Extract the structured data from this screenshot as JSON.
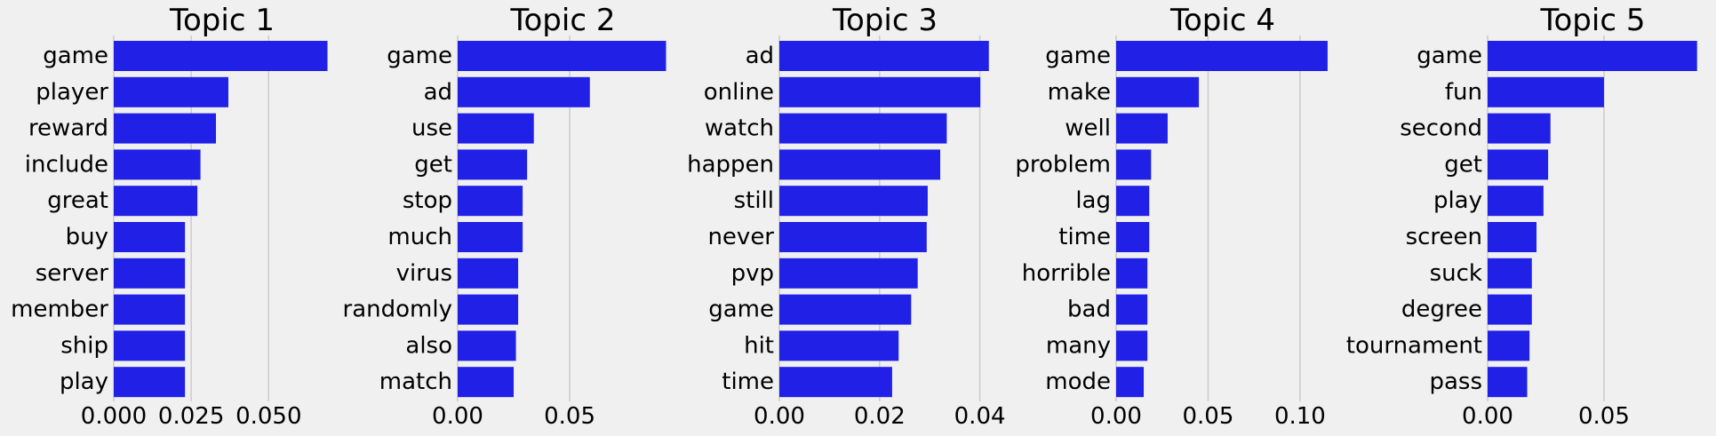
{
  "colors": {
    "background": "#f0f0f0",
    "bar": "#2020e6",
    "grid": "#cbcbcb"
  },
  "chart_data": [
    {
      "type": "bar",
      "orientation": "horizontal",
      "title": "Topic 1",
      "categories": [
        "game",
        "player",
        "reward",
        "include",
        "great",
        "buy",
        "server",
        "member",
        "ship",
        "play"
      ],
      "values": [
        0.069,
        0.037,
        0.033,
        0.028,
        0.027,
        0.023,
        0.023,
        0.023,
        0.023,
        0.023
      ],
      "xlim": [
        0,
        0.07
      ],
      "xticks": [
        0.0,
        0.025,
        0.05
      ],
      "xticklabels": [
        "0.000",
        "0.025",
        "0.050"
      ],
      "xlabel": "",
      "ylabel": "",
      "grid": "vertical"
    },
    {
      "type": "bar",
      "orientation": "horizontal",
      "title": "Topic 2",
      "categories": [
        "game",
        "ad",
        "use",
        "get",
        "stop",
        "much",
        "virus",
        "randomly",
        "also",
        "match"
      ],
      "values": [
        0.093,
        0.059,
        0.034,
        0.031,
        0.029,
        0.029,
        0.027,
        0.027,
        0.026,
        0.025
      ],
      "xlim": [
        0,
        0.094
      ],
      "xticks": [
        0.0,
        0.05
      ],
      "xticklabels": [
        "0.00",
        "0.05"
      ],
      "xlabel": "",
      "ylabel": "",
      "grid": "vertical"
    },
    {
      "type": "bar",
      "orientation": "horizontal",
      "title": "Topic 3",
      "categories": [
        "ad",
        "online",
        "watch",
        "happen",
        "still",
        "never",
        "pvp",
        "game",
        "hit",
        "time"
      ],
      "values": [
        0.0418,
        0.0401,
        0.0334,
        0.0321,
        0.0296,
        0.0294,
        0.0276,
        0.0263,
        0.0238,
        0.0225
      ],
      "xlim": [
        0,
        0.0422
      ],
      "xticks": [
        0.0,
        0.02,
        0.04
      ],
      "xticklabels": [
        "0.00",
        "0.02",
        "0.04"
      ],
      "xlabel": "",
      "ylabel": "",
      "grid": "vertical"
    },
    {
      "type": "bar",
      "orientation": "horizontal",
      "title": "Topic 4",
      "categories": [
        "game",
        "make",
        "well",
        "problem",
        "lag",
        "time",
        "horrible",
        "bad",
        "many",
        "mode"
      ],
      "values": [
        0.115,
        0.045,
        0.028,
        0.019,
        0.018,
        0.018,
        0.017,
        0.017,
        0.017,
        0.015
      ],
      "xlim": [
        0,
        0.116
      ],
      "xticks": [
        0.0,
        0.05,
        0.1
      ],
      "xticklabels": [
        "0.00",
        "0.05",
        "0.10"
      ],
      "xlabel": "",
      "ylabel": "",
      "grid": "vertical"
    },
    {
      "type": "bar",
      "orientation": "horizontal",
      "title": "Topic 5",
      "categories": [
        "game",
        "fun",
        "second",
        "get",
        "play",
        "screen",
        "suck",
        "degree",
        "tournament",
        "pass"
      ],
      "values": [
        0.09,
        0.05,
        0.027,
        0.026,
        0.024,
        0.021,
        0.019,
        0.019,
        0.018,
        0.017
      ],
      "xlim": [
        0,
        0.0905
      ],
      "xticks": [
        0.0,
        0.05
      ],
      "xticklabels": [
        "0.00",
        "0.05"
      ],
      "xlabel": "",
      "ylabel": "",
      "grid": "vertical"
    }
  ]
}
